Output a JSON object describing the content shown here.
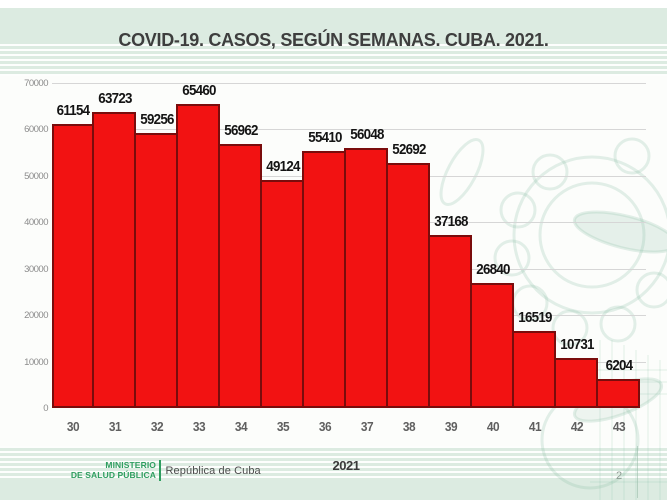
{
  "slide": {
    "title": "COVID-19. CASOS, SEGÚN SEMANAS. CUBA. 2021.",
    "page_number": "2"
  },
  "footer": {
    "ministry_line1": "MINISTERIO",
    "ministry_line2": "DE SALUD PÚBLICA",
    "country": "República de Cuba"
  },
  "icons": {
    "watermark": "minsap-emblem-watermark"
  },
  "colors": {
    "background": "#dcebe1",
    "panel": "#fcfdfb",
    "bar_fill": "#f21212",
    "bar_border": "#7a0c0c",
    "gridline": "#d6d6d6",
    "title_text": "#3e3e3e",
    "tick_text": "#5f5f5f",
    "footer_green": "#2f9e60"
  },
  "chart_data": {
    "type": "bar",
    "title": "COVID-19. CASOS, SEGÚN SEMANAS. CUBA. 2021.",
    "categories": [
      "30",
      "31",
      "32",
      "33",
      "34",
      "35",
      "36",
      "37",
      "38",
      "39",
      "40",
      "41",
      "42",
      "43"
    ],
    "values": [
      61154,
      63723,
      59256,
      65460,
      56962,
      49124,
      55410,
      56048,
      52692,
      37168,
      26840,
      16519,
      10731,
      6204
    ],
    "xlabel": "2021",
    "ylabel": "",
    "ylim": [
      0,
      70000
    ],
    "ytick_interval": 10000,
    "yticks": [
      "0",
      "10000",
      "20000",
      "30000",
      "40000",
      "50000",
      "60000",
      "70000"
    ],
    "grid": true,
    "data_labels": true,
    "legend": "none"
  }
}
